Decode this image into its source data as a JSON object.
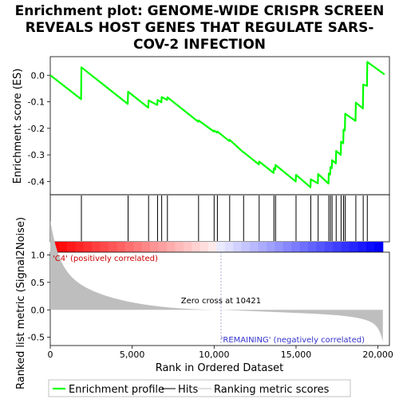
{
  "chart_data": {
    "type": "line",
    "title": "Enrichment plot: GENOME-WIDE CRISPR SCREEN REVEALS HOST GENES THAT REGULATE SARS-COV-2 INFECTION",
    "title_lines": [
      "Enrichment plot: GENOME-WIDE CRISPR SCREEN",
      "REVEALS HOST GENES THAT REGULATE SARS-",
      "COV-2 INFECTION"
    ],
    "xlabel": "Rank in Ordered Dataset",
    "xlim": [
      0,
      20700
    ],
    "x_ticks": [
      0,
      5000,
      10000,
      15000,
      20000
    ],
    "x_tick_labels": [
      "0",
      "5,000",
      "10,000",
      "15,000",
      "20,000"
    ],
    "top_panel": {
      "ylabel": "Enrichment score (ES)",
      "ylim": [
        -0.45,
        0.07
      ],
      "y_ticks": [
        0.0,
        -0.1,
        -0.2,
        -0.3,
        -0.4
      ],
      "y_tick_labels": [
        "0.0",
        "-0.1",
        "-0.2",
        "-0.3",
        "-0.4"
      ],
      "color": "#00ff00",
      "grid": false
    },
    "bottom_panel": {
      "ylabel": "Ranked list metric (Signal2Noise)",
      "ylim": [
        -0.65,
        1.05
      ],
      "y_ticks": [
        1.0,
        0.5,
        0.0,
        -0.5
      ],
      "y_tick_labels": [
        "1.0",
        "0.5",
        "0.0",
        "-0.5"
      ],
      "zero_cross": 10421,
      "zero_cross_label": "Zero cross at 10421",
      "positive_label": "'C4' (positively correlated)",
      "negative_label": "'REMAINING' (negatively correlated)"
    },
    "hits": [
      1900,
      4750,
      6000,
      6550,
      6800,
      7150,
      9050,
      10000,
      10200,
      10950,
      11800,
      12750,
      13650,
      13750,
      15000,
      15900,
      16350,
      17000,
      17100,
      17200,
      17450,
      17750,
      17900,
      18000,
      18650,
      19100,
      19350
    ],
    "series": [
      {
        "name": "Enrichment profile",
        "x": [
          0,
          1880,
          1900,
          4730,
          4750,
          5980,
          6000,
          6530,
          6550,
          6780,
          6800,
          7130,
          7150,
          9030,
          9050,
          9980,
          10000,
          10180,
          10200,
          10930,
          10950,
          11780,
          11800,
          12730,
          12750,
          13630,
          13650,
          13730,
          13750,
          14980,
          15000,
          15880,
          15900,
          16330,
          16350,
          16980,
          17000,
          17080,
          17100,
          17180,
          17200,
          17430,
          17450,
          17730,
          17750,
          17880,
          17900,
          17980,
          18000,
          18630,
          18650,
          19080,
          19100,
          19330,
          19350,
          20400
        ],
        "values": [
          0.0,
          -0.09,
          0.03,
          -0.108,
          -0.062,
          -0.122,
          -0.095,
          -0.112,
          -0.093,
          -0.102,
          -0.082,
          -0.093,
          -0.083,
          -0.175,
          -0.17,
          -0.212,
          -0.208,
          -0.216,
          -0.212,
          -0.248,
          -0.243,
          -0.29,
          -0.29,
          -0.336,
          -0.325,
          -0.368,
          -0.35,
          -0.355,
          -0.338,
          -0.4,
          -0.375,
          -0.422,
          -0.392,
          -0.407,
          -0.372,
          -0.408,
          -0.37,
          -0.374,
          -0.346,
          -0.35,
          -0.32,
          -0.332,
          -0.285,
          -0.3,
          -0.25,
          -0.256,
          -0.205,
          -0.208,
          -0.145,
          -0.172,
          -0.103,
          -0.125,
          -0.035,
          -0.04,
          0.05,
          0.003
        ]
      }
    ],
    "legend": {
      "placement": "bottom",
      "entries": [
        {
          "name": "Enrichment profile",
          "color": "#00ff00"
        },
        {
          "name": "Hits",
          "color": "#000000"
        },
        {
          "name": "Ranking metric scores",
          "color": "#bebebe"
        }
      ]
    }
  }
}
